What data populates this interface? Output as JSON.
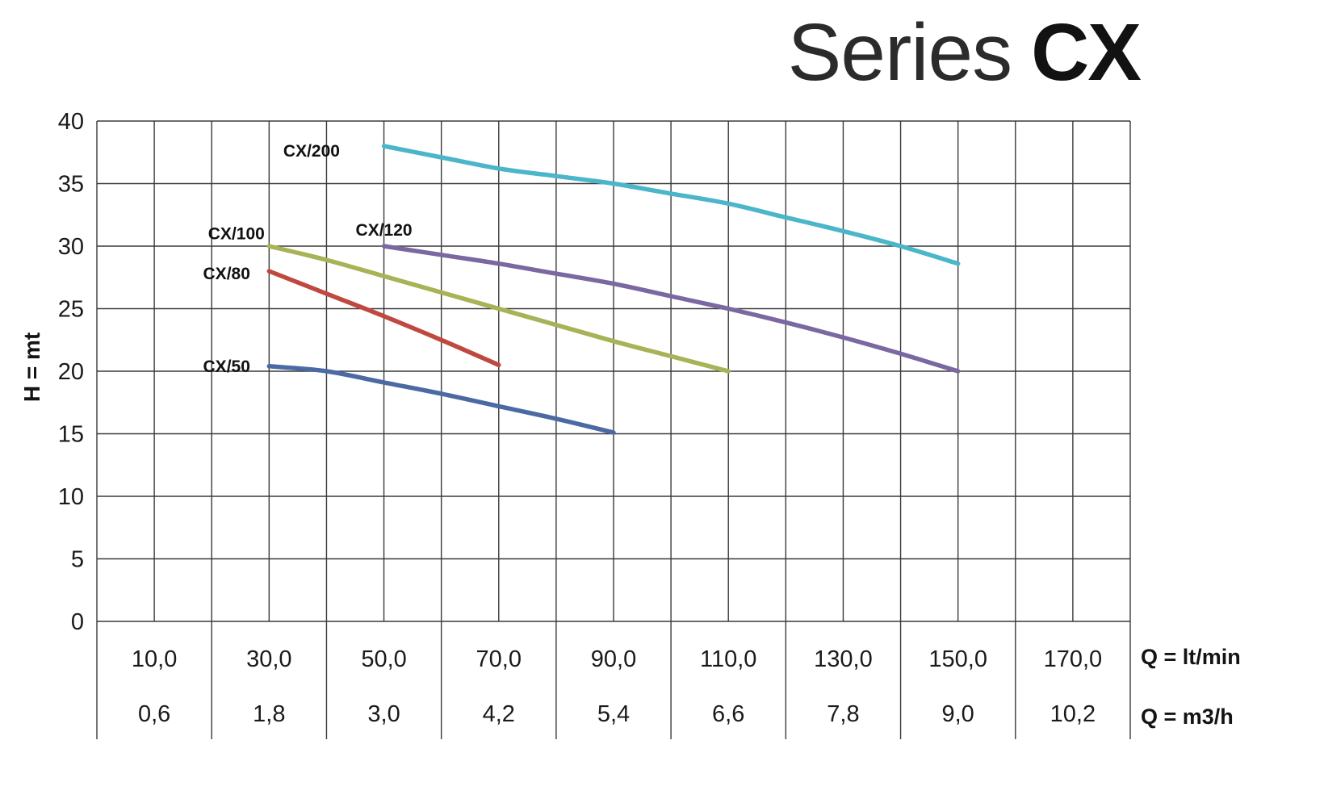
{
  "page": {
    "title_light": "Series",
    "title_bold": "CX"
  },
  "axis_labels": {
    "y": "H = mt",
    "x_primary": "Q = lt/min",
    "x_secondary": "Q = m3/h"
  },
  "chart_data": {
    "type": "line",
    "title": "Series CX",
    "ylabel": "H = mt",
    "xlabel": "Q = lt/min",
    "xlabel_secondary": "Q = m3/h",
    "xlim": [
      0,
      180
    ],
    "ylim": [
      0,
      40
    ],
    "x_grid_step": 10,
    "y_grid_step": 5,
    "grid": true,
    "grid_color": "#3a3a3a",
    "legend_position": "inline-curve-labels",
    "y_ticks": {
      "values": [
        40,
        35,
        30,
        25,
        20,
        15,
        10,
        5,
        0
      ],
      "labels": [
        "40",
        "35",
        "30",
        "25",
        "20",
        "15",
        "10",
        "5",
        "0"
      ]
    },
    "x_ticks": {
      "values": [
        10,
        30,
        50,
        70,
        90,
        110,
        130,
        150,
        170
      ],
      "lt_min_labels": [
        "10,0",
        "30,0",
        "50,0",
        "70,0",
        "90,0",
        "110,0",
        "130,0",
        "150,0",
        "170,0"
      ],
      "m3_h_labels": [
        "0,6",
        "1,8",
        "3,0",
        "4,2",
        "5,4",
        "6,6",
        "7,8",
        "9,0",
        "10,2"
      ]
    },
    "series": [
      {
        "name": "CX/200",
        "color": "#4bb6c9",
        "label_pos": [
          37.4,
          37.6
        ],
        "points": [
          [
            50,
            38
          ],
          [
            60,
            37.1
          ],
          [
            70,
            36.2
          ],
          [
            80,
            35.6
          ],
          [
            90,
            35
          ],
          [
            100,
            34.2
          ],
          [
            110,
            33.4
          ],
          [
            120,
            32.3
          ],
          [
            130,
            31.2
          ],
          [
            140,
            30
          ],
          [
            150,
            28.6
          ]
        ]
      },
      {
        "name": "CX/120",
        "color": "#7b68a2",
        "label_pos": [
          50,
          31.3
        ],
        "points": [
          [
            50,
            30
          ],
          [
            60,
            29.3
          ],
          [
            70,
            28.6
          ],
          [
            80,
            27.8
          ],
          [
            90,
            27
          ],
          [
            100,
            26
          ],
          [
            110,
            25
          ],
          [
            120,
            23.9
          ],
          [
            130,
            22.7
          ],
          [
            140,
            21.4
          ],
          [
            150,
            20
          ]
        ]
      },
      {
        "name": "CX/100",
        "color": "#a8b357",
        "label_pos": [
          24.3,
          31.0
        ],
        "points": [
          [
            30,
            30
          ],
          [
            40,
            28.9
          ],
          [
            50,
            27.6
          ],
          [
            60,
            26.3
          ],
          [
            70,
            25
          ],
          [
            80,
            23.7
          ],
          [
            90,
            22.4
          ],
          [
            100,
            21.2
          ],
          [
            110,
            20
          ]
        ]
      },
      {
        "name": "CX/80",
        "color": "#bf4940",
        "label_pos": [
          22.6,
          27.8
        ],
        "points": [
          [
            30,
            28
          ],
          [
            40,
            26.2
          ],
          [
            50,
            24.4
          ],
          [
            60,
            22.5
          ],
          [
            70,
            20.5
          ]
        ]
      },
      {
        "name": "CX/50",
        "color": "#4b69a2",
        "label_pos": [
          22.6,
          20.4
        ],
        "points": [
          [
            30,
            20.4
          ],
          [
            40,
            20
          ],
          [
            50,
            19.1
          ],
          [
            60,
            18.2
          ],
          [
            70,
            17.2
          ],
          [
            80,
            16.2
          ],
          [
            90,
            15.1
          ]
        ]
      }
    ]
  }
}
